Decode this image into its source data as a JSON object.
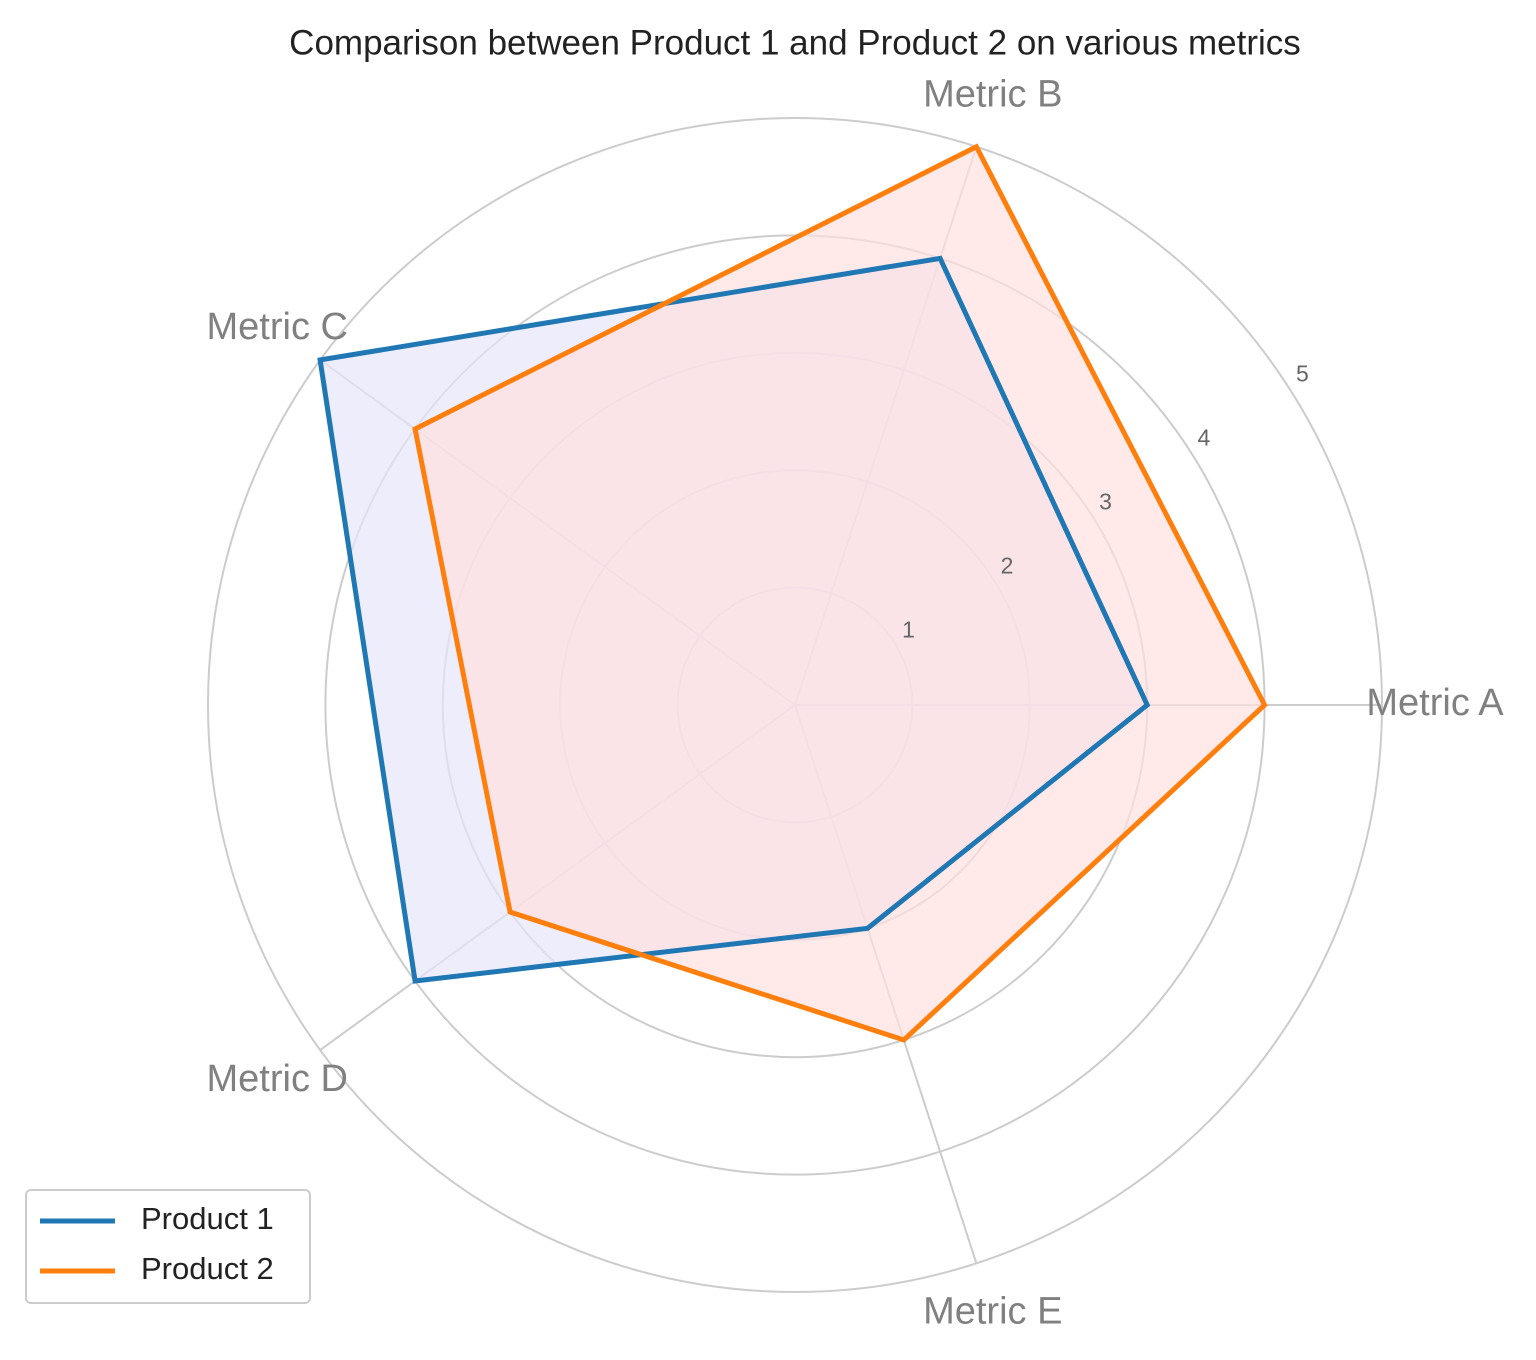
{
  "chart_data": {
    "type": "radar",
    "title": "Comparison between Product 1 and Product 2 on various metrics",
    "categories": [
      "Metric A",
      "Metric B",
      "Metric C",
      "Metric D",
      "Metric E"
    ],
    "series": [
      {
        "name": "Product 1",
        "color": "#1f77b4",
        "fill": "#e5e5fb",
        "values": [
          3,
          4,
          5,
          4,
          2
        ]
      },
      {
        "name": "Product 2",
        "color": "#ff7f0e",
        "fill": "#ffe0e0",
        "values": [
          4,
          5,
          4,
          3,
          3
        ]
      }
    ],
    "rlim": [
      0,
      5
    ],
    "rticks": [
      1,
      2,
      3,
      4,
      5
    ],
    "grid": true,
    "legend": "lower left"
  }
}
